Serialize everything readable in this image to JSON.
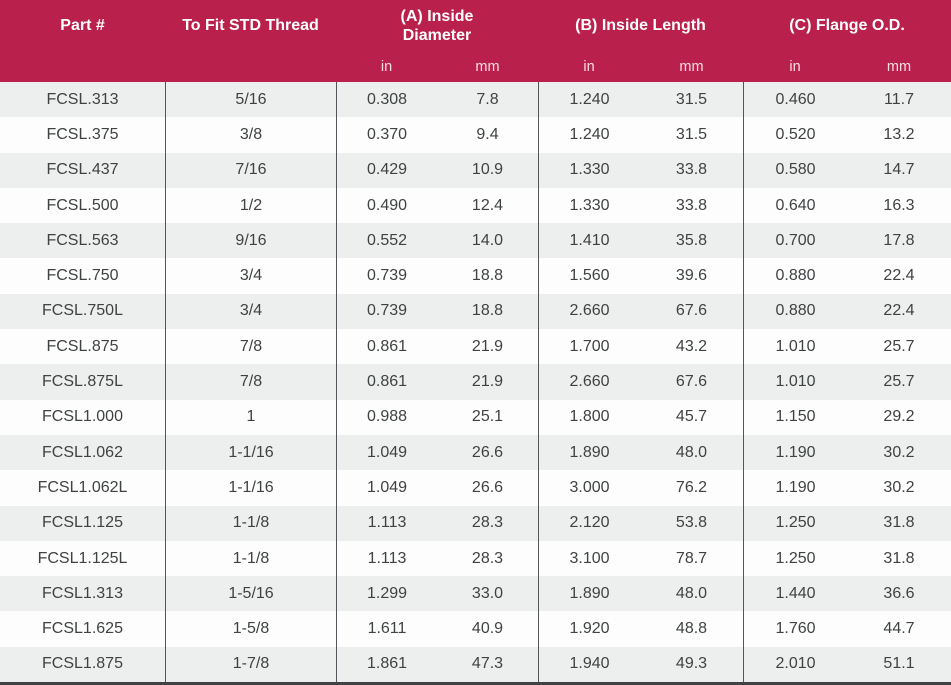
{
  "colors": {
    "accent": "#b9204b",
    "header_text": "#ffffff",
    "unit_text": "rgba(255,255,255,0.85)",
    "row_bg": "#fdfdfd",
    "row_alt_bg": "#edefee",
    "cell_text": "#3f4243",
    "divider": "#53555a",
    "border_dark": "#404244"
  },
  "table": {
    "columns": [
      {
        "key": "part",
        "label": "Part #"
      },
      {
        "key": "thread",
        "label": "To Fit STD Thread"
      },
      {
        "key": "inside_diameter",
        "label": "(A) Inside\nDiameter",
        "sub": [
          "in",
          "mm"
        ]
      },
      {
        "key": "inside_length",
        "label": "(B) Inside Length",
        "sub": [
          "in",
          "mm"
        ]
      },
      {
        "key": "flange_od",
        "label": "(C) Flange O.D.",
        "sub": [
          "in",
          "mm"
        ]
      }
    ],
    "rows": [
      [
        "FCSL.313",
        "5/16",
        "0.308",
        "7.8",
        "1.240",
        "31.5",
        "0.460",
        "11.7"
      ],
      [
        "FCSL.375",
        "3/8",
        "0.370",
        "9.4",
        "1.240",
        "31.5",
        "0.520",
        "13.2"
      ],
      [
        "FCSL.437",
        "7/16",
        "0.429",
        "10.9",
        "1.330",
        "33.8",
        "0.580",
        "14.7"
      ],
      [
        "FCSL.500",
        "1/2",
        "0.490",
        "12.4",
        "1.330",
        "33.8",
        "0.640",
        "16.3"
      ],
      [
        "FCSL.563",
        "9/16",
        "0.552",
        "14.0",
        "1.410",
        "35.8",
        "0.700",
        "17.8"
      ],
      [
        "FCSL.750",
        "3/4",
        "0.739",
        "18.8",
        "1.560",
        "39.6",
        "0.880",
        "22.4"
      ],
      [
        "FCSL.750L",
        "3/4",
        "0.739",
        "18.8",
        "2.660",
        "67.6",
        "0.880",
        "22.4"
      ],
      [
        "FCSL.875",
        "7/8",
        "0.861",
        "21.9",
        "1.700",
        "43.2",
        "1.010",
        "25.7"
      ],
      [
        "FCSL.875L",
        "7/8",
        "0.861",
        "21.9",
        "2.660",
        "67.6",
        "1.010",
        "25.7"
      ],
      [
        "FCSL1.000",
        "1",
        "0.988",
        "25.1",
        "1.800",
        "45.7",
        "1.150",
        "29.2"
      ],
      [
        "FCSL1.062",
        "1-1/16",
        "1.049",
        "26.6",
        "1.890",
        "48.0",
        "1.190",
        "30.2"
      ],
      [
        "FCSL1.062L",
        "1-1/16",
        "1.049",
        "26.6",
        "3.000",
        "76.2",
        "1.190",
        "30.2"
      ],
      [
        "FCSL1.125",
        "1-1/8",
        "1.113",
        "28.3",
        "2.120",
        "53.8",
        "1.250",
        "31.8"
      ],
      [
        "FCSL1.125L",
        "1-1/8",
        "1.113",
        "28.3",
        "3.100",
        "78.7",
        "1.250",
        "31.8"
      ],
      [
        "FCSL1.313",
        "1-5/16",
        "1.299",
        "33.0",
        "1.890",
        "48.0",
        "1.440",
        "36.6"
      ],
      [
        "FCSL1.625",
        "1-5/8",
        "1.611",
        "40.9",
        "1.920",
        "48.8",
        "1.760",
        "44.7"
      ],
      [
        "FCSL1.875",
        "1-7/8",
        "1.861",
        "47.3",
        "1.940",
        "49.3",
        "2.010",
        "51.1"
      ]
    ]
  }
}
